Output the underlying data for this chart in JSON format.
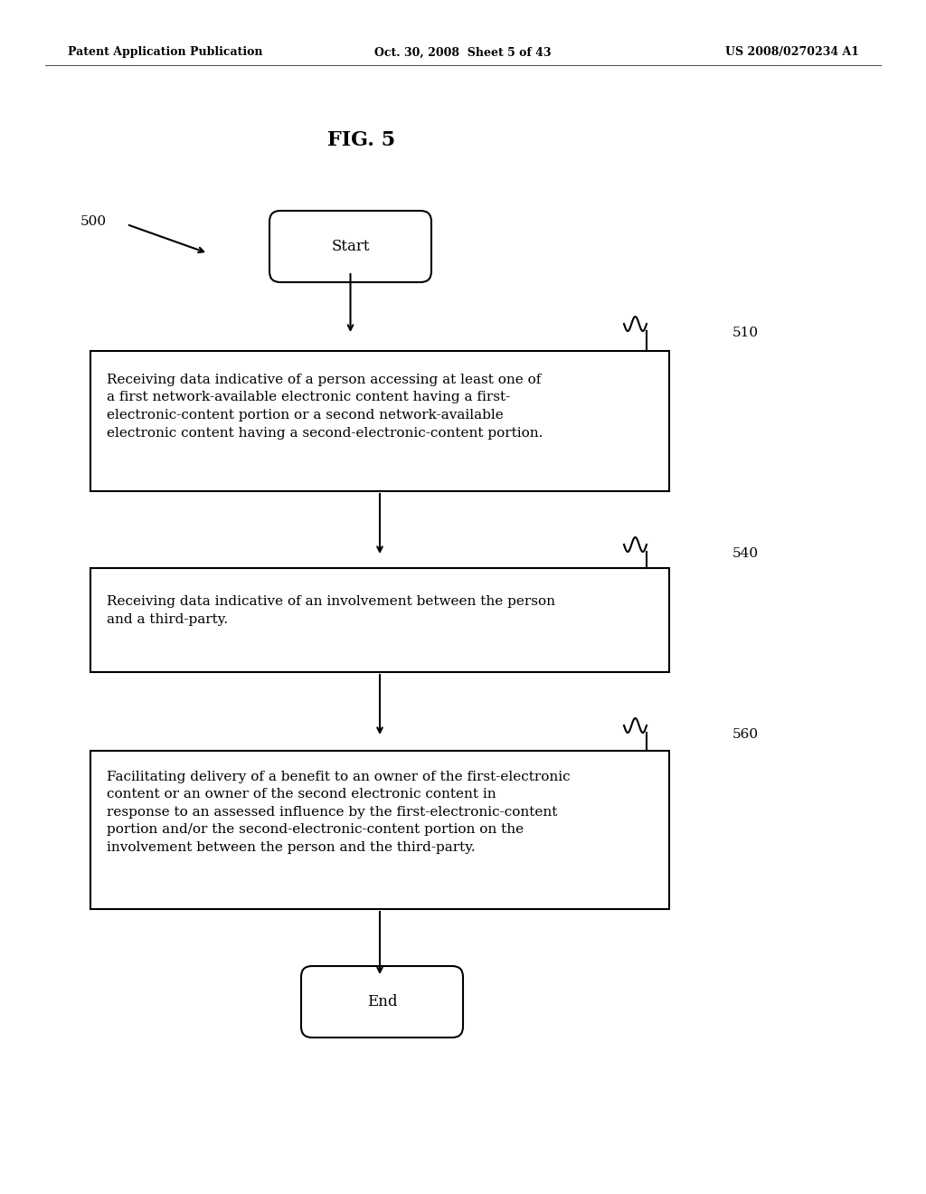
{
  "bg_color": "#ffffff",
  "header_left": "Patent Application Publication",
  "header_center": "Oct. 30, 2008  Sheet 5 of 43",
  "header_right": "US 2008/0270234 A1",
  "fig_title": "FIG. 5",
  "start_label": "Start",
  "end_label": "End",
  "box_label_500": "500",
  "box_label_510": "510",
  "box_label_540": "540",
  "box_label_560": "560",
  "box1_text": "Receiving data indicative of a person accessing at least one of\na first network-available electronic content having a first-\nelectronic-content portion or a second network-available\nelectronic content having a second-electronic-content portion.",
  "box2_text": "Receiving data indicative of an involvement between the person\nand a third-party.",
  "box3_text": "Facilitating delivery of a benefit to an owner of the first-electronic\ncontent or an owner of the second electronic content in\nresponse to an assessed influence by the first-electronic-content\nportion and/or the second-electronic-content portion on the\ninvolvement between the person and the third-party.",
  "text_color": "#000000",
  "box_edge_color": "#000000",
  "box_face_color": "#ffffff",
  "arrow_color": "#000000"
}
